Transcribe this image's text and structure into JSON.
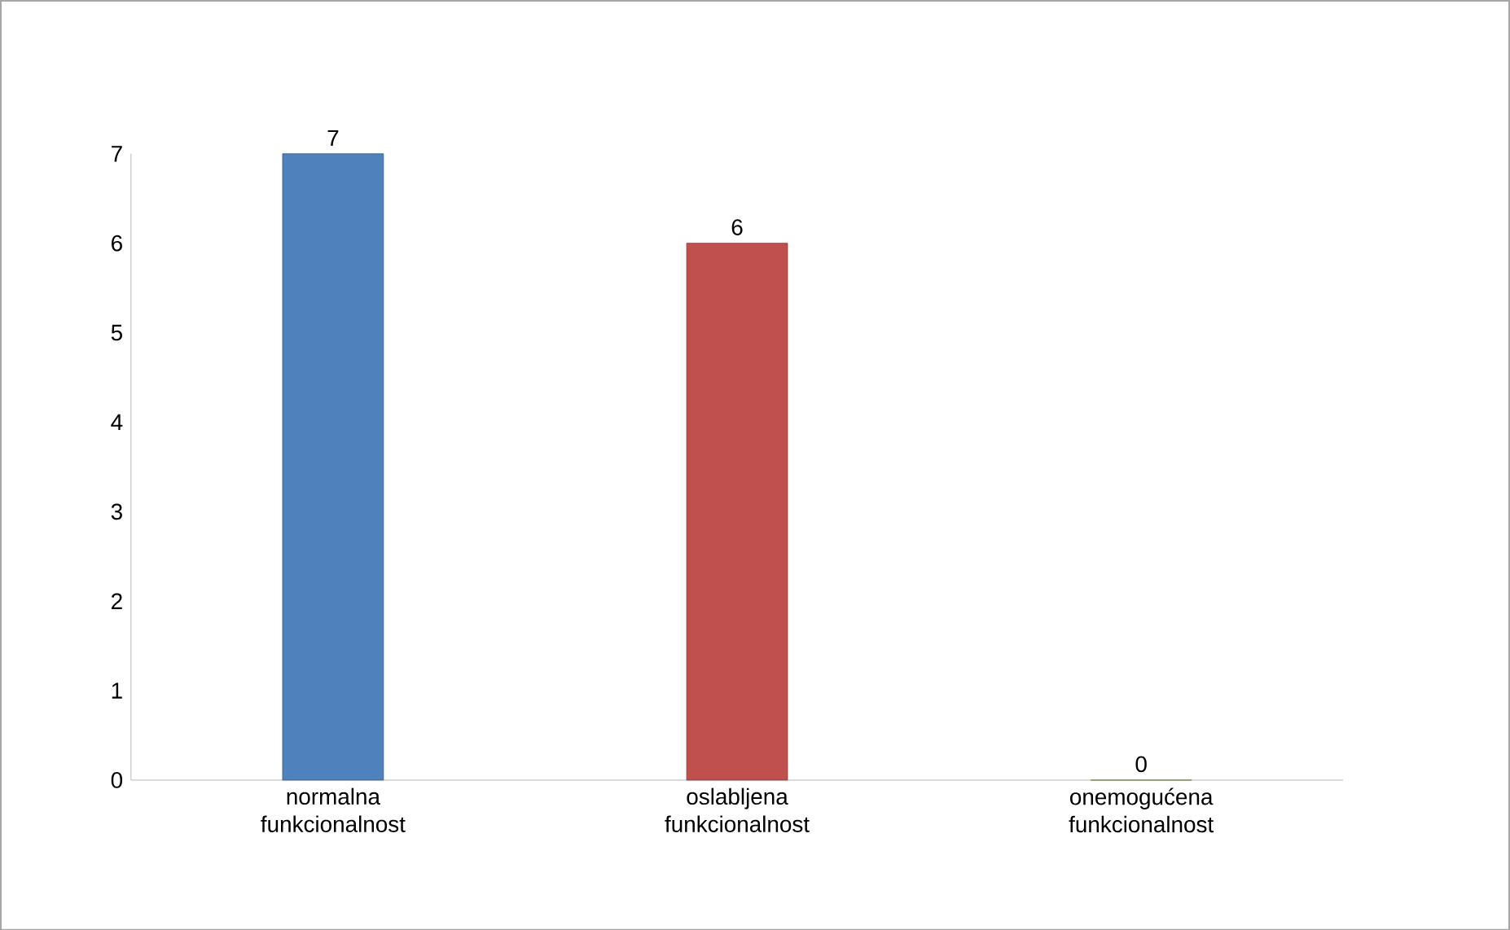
{
  "chart_data": {
    "type": "bar",
    "categories": [
      "normalna funkcionalnost",
      "oslabljena funkcionalnost",
      "onemogućena funkcionalnost"
    ],
    "values": [
      7,
      6,
      0
    ],
    "colors": [
      "#4f81bd",
      "#c0504d",
      "#9bbb59"
    ],
    "ylim": [
      0,
      7
    ],
    "yticks": [
      0,
      1,
      2,
      3,
      4,
      5,
      6,
      7
    ],
    "data_labels": true,
    "grid": false
  }
}
